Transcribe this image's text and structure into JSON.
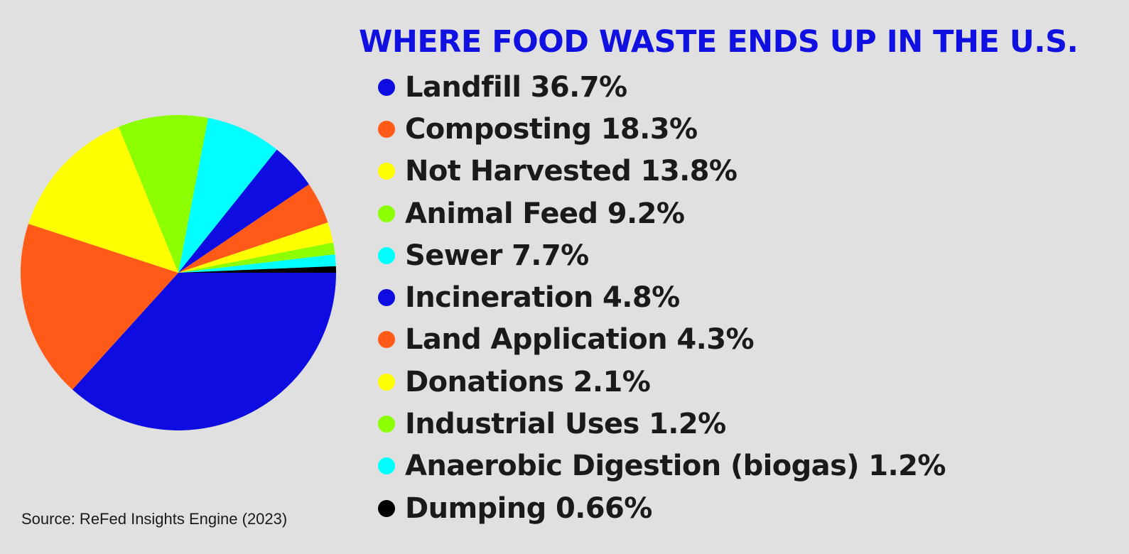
{
  "chart_data": {
    "type": "pie",
    "title": "WHERE FOOD WASTE ENDS UP IN THE U.S.",
    "legend_position": "right",
    "slices": [
      {
        "label": "Landfill",
        "value": 36.7,
        "display": "Landfill 36.7%",
        "color": "#0e0ce0"
      },
      {
        "label": "Composting",
        "value": 18.3,
        "display": "Composting 18.3%",
        "color": "#ff5a17"
      },
      {
        "label": "Not Harvested",
        "value": 13.8,
        "display": "Not Harvested 13.8%",
        "color": "#ffff00"
      },
      {
        "label": "Animal Feed",
        "value": 9.2,
        "display": "Animal Feed 9.2%",
        "color": "#8cff00"
      },
      {
        "label": "Sewer",
        "value": 7.7,
        "display": "Sewer 7.7%",
        "color": "#00ffff"
      },
      {
        "label": "Incineration",
        "value": 4.8,
        "display": "Incineration 4.8%",
        "color": "#0e0ce0"
      },
      {
        "label": "Land Application",
        "value": 4.3,
        "display": "Land Application 4.3%",
        "color": "#ff5a17"
      },
      {
        "label": "Donations",
        "value": 2.1,
        "display": "Donations 2.1%",
        "color": "#ffff00"
      },
      {
        "label": "Industrial Uses",
        "value": 1.2,
        "display": "Industrial Uses 1.2%",
        "color": "#8cff00"
      },
      {
        "label": "Anaerobic Digestion (biogas)",
        "value": 1.2,
        "display": "Anaerobic Digestion (biogas) 1.2%",
        "color": "#00ffff"
      },
      {
        "label": "Dumping",
        "value": 0.66,
        "display": "Dumping 0.66%",
        "color": "#000000"
      }
    ]
  },
  "source": "Source: ReFed Insights Engine (2023)"
}
